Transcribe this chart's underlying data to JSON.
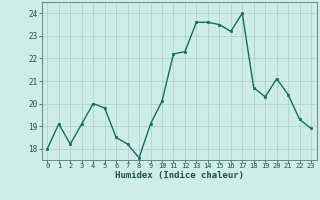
{
  "x": [
    0,
    1,
    2,
    3,
    4,
    5,
    6,
    7,
    8,
    9,
    10,
    11,
    12,
    13,
    14,
    15,
    16,
    17,
    18,
    19,
    20,
    21,
    22,
    23
  ],
  "y": [
    18.0,
    19.1,
    18.2,
    19.1,
    20.0,
    19.8,
    18.5,
    18.2,
    17.6,
    19.1,
    20.1,
    22.2,
    22.3,
    23.6,
    23.6,
    23.5,
    23.2,
    24.0,
    20.7,
    20.3,
    21.1,
    20.4,
    19.3,
    18.9
  ],
  "line_color": "#1a6b5a",
  "marker": "s",
  "marker_size": 2.0,
  "line_width": 1.0,
  "xlabel": "Humidex (Indice chaleur)",
  "ylim": [
    17.5,
    24.5
  ],
  "xlim": [
    -0.5,
    23.5
  ],
  "yticks": [
    18,
    19,
    20,
    21,
    22,
    23,
    24
  ],
  "xticks": [
    0,
    1,
    2,
    3,
    4,
    5,
    6,
    7,
    8,
    9,
    10,
    11,
    12,
    13,
    14,
    15,
    16,
    17,
    18,
    19,
    20,
    21,
    22,
    23
  ],
  "bg_color": "#cdecea",
  "grid_color": "#aacfcd",
  "axis_color": "#557777",
  "tick_color": "#1a5050",
  "xlabel_color": "#1a5050"
}
